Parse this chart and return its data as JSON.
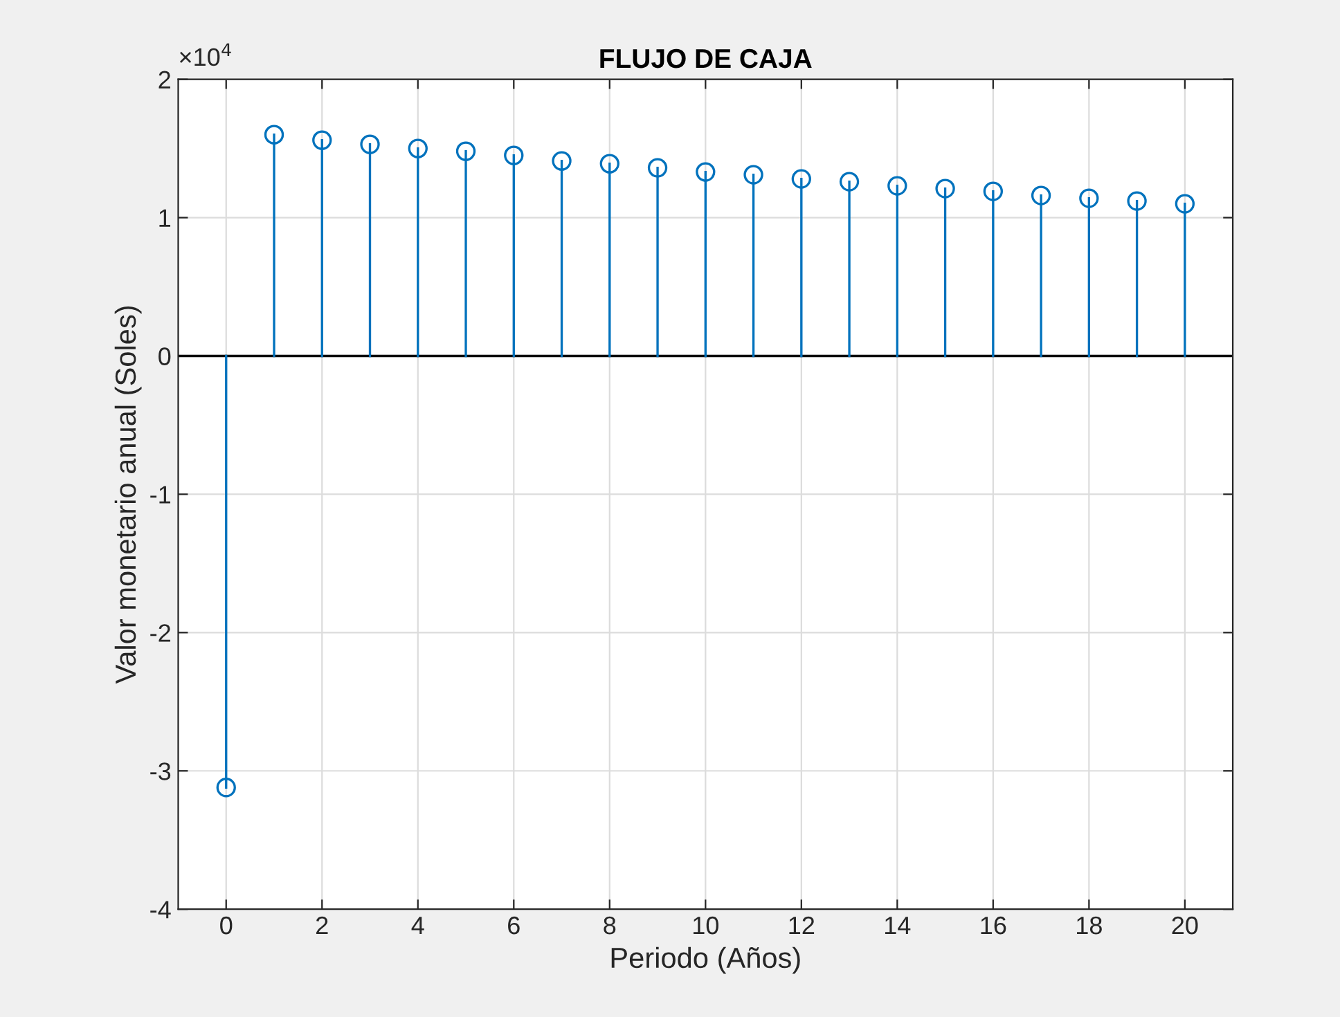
{
  "chart_data": {
    "type": "lollipop",
    "title": "FLUJO DE CAJA",
    "xlabel": "Periodo (Años)",
    "ylabel": "Valor monetario anual (Soles)",
    "x": [
      0,
      1,
      2,
      3,
      4,
      5,
      6,
      7,
      8,
      9,
      10,
      11,
      12,
      13,
      14,
      15,
      16,
      17,
      18,
      19,
      20
    ],
    "series": [
      {
        "color": "#0072bd",
        "values": [
          -3.12,
          1.6,
          1.56,
          1.53,
          1.5,
          1.48,
          1.45,
          1.41,
          1.39,
          1.36,
          1.33,
          1.31,
          1.28,
          1.26,
          1.23,
          1.21,
          1.19,
          1.16,
          1.14,
          1.12,
          1.1
        ]
      }
    ],
    "xlim": [
      -1,
      21
    ],
    "xticks": [
      0,
      2,
      4,
      6,
      8,
      10,
      12,
      14,
      16,
      18,
      20
    ],
    "ylim": [
      -4,
      2
    ],
    "yticks": [
      -4,
      -3,
      -2,
      -1,
      0,
      1,
      2
    ],
    "annotations": [
      "×10$^{4}$"
    ],
    "ref_lines": [
      {
        "axis": "y",
        "value": 0,
        "color": "#000000"
      }
    ],
    "grid": true,
    "marker": "circle",
    "line_style": "solid"
  }
}
